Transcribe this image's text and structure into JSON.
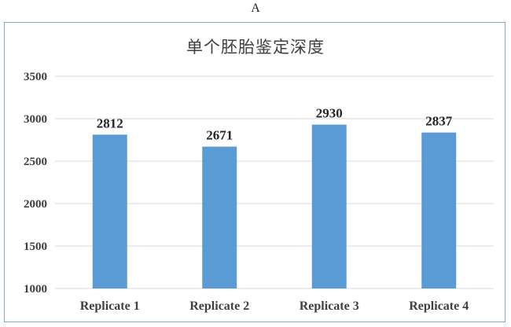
{
  "panel_label": "A",
  "colors": {
    "bar": "#5b9bd5",
    "grid": "#d9d9d9",
    "border": "#7fa6cf"
  },
  "chart_data": {
    "type": "bar",
    "title": "单个胚胎鉴定深度",
    "xlabel": "",
    "ylabel": "",
    "categories": [
      "Replicate 1",
      "Replicate 2",
      "Replicate 3",
      "Replicate 4"
    ],
    "values": [
      2812,
      2671,
      2930,
      2837
    ],
    "ylim": [
      1000,
      3500
    ],
    "yticks": [
      1000,
      1500,
      2000,
      2500,
      3000,
      3500
    ],
    "grid": true,
    "data_labels": true
  }
}
